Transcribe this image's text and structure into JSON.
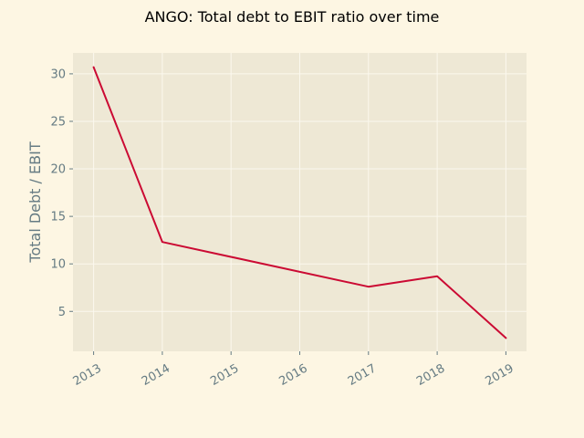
{
  "chart_data": {
    "type": "line",
    "title": "ANGO: Total debt to EBIT ratio over time",
    "xlabel": "",
    "ylabel": "Total Debt / EBIT",
    "x": [
      2013,
      2014,
      2015,
      2016,
      2017,
      2018,
      2019
    ],
    "x_tick_labels": [
      "2013",
      "2014",
      "2015",
      "2016",
      "2017",
      "2018",
      "2019"
    ],
    "y_ticks": [
      5,
      10,
      15,
      20,
      25,
      30
    ],
    "y_tick_labels": [
      "5",
      "10",
      "15",
      "20",
      "25",
      "30"
    ],
    "series": [
      {
        "x": [
          2013,
          2014,
          2017,
          2018,
          2019
        ],
        "values": [
          30.7,
          12.3,
          7.6,
          8.7,
          2.2
        ]
      }
    ],
    "xlim": [
      2012.7,
      2019.3
    ],
    "ylim": [
      0.8,
      32.2
    ],
    "grid": true,
    "legend": "none",
    "colors": {
      "figure_background": "#fdf6e3",
      "plot_background": "#eee8d5",
      "grid": "#fbf8ee",
      "line": "#cb0a33",
      "tick_text": "#657b83",
      "title_text": "#000000"
    }
  }
}
